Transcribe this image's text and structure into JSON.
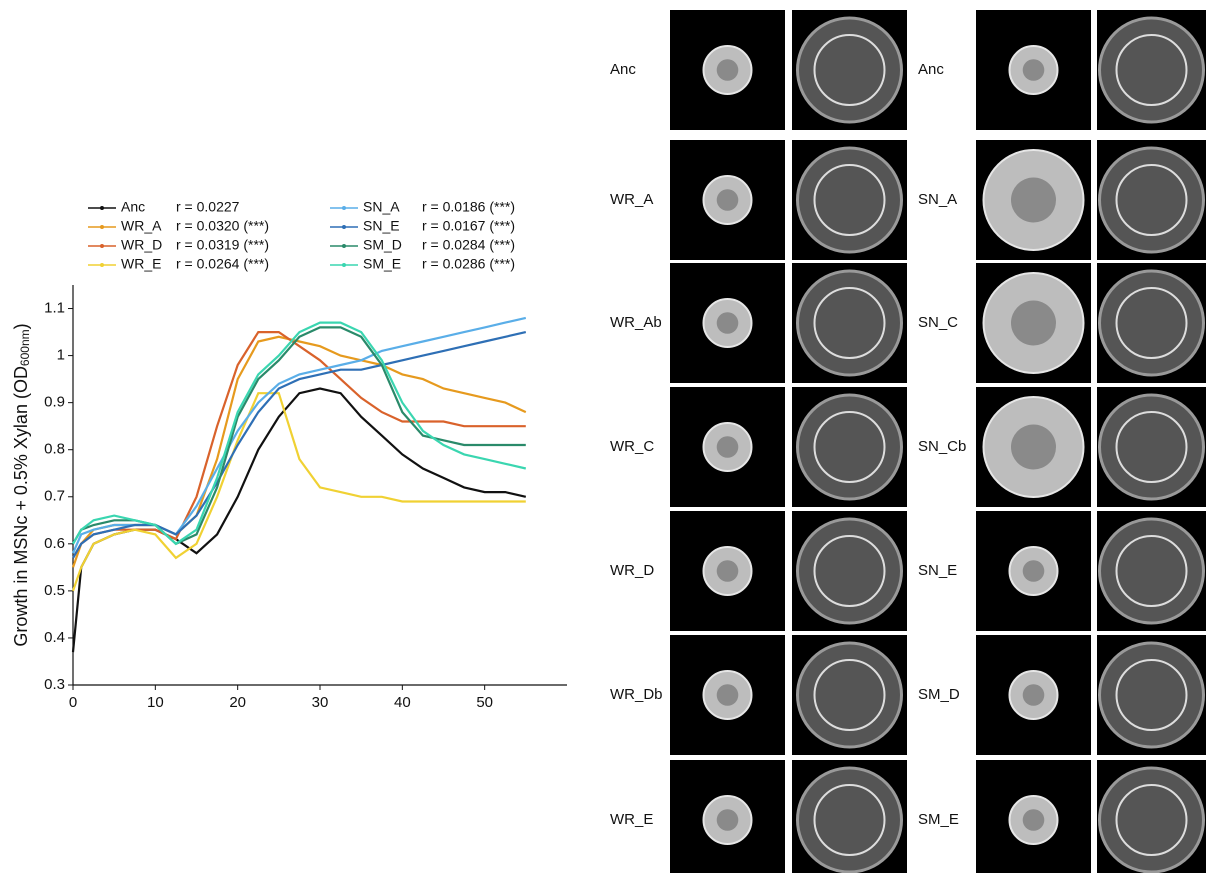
{
  "chart_data": {
    "type": "line",
    "ylabel": "Growth in MSNc + 0.5% Xylan (OD",
    "ylabel_sub": "600nm",
    "ylabel_end": ")",
    "x": [
      0,
      1,
      2.5,
      5,
      7.5,
      10,
      12.5,
      15,
      17.5,
      20,
      22.5,
      25,
      27.5,
      30,
      32.5,
      35,
      37.5,
      40,
      42.5,
      45,
      47.5,
      50,
      52.5,
      55
    ],
    "xlim": [
      0,
      60
    ],
    "xticks": [
      0,
      10,
      20,
      30,
      40,
      50
    ],
    "ylim": [
      0.3,
      1.15
    ],
    "yticks": [
      0.3,
      0.4,
      0.5,
      0.6,
      0.7,
      0.8,
      0.9,
      1.0,
      1.1
    ],
    "series": [
      {
        "name": "Anc",
        "stat": "r = 0.0227",
        "color": "#111111",
        "values": [
          0.37,
          0.55,
          0.6,
          0.62,
          0.63,
          0.63,
          0.61,
          0.58,
          0.62,
          0.7,
          0.8,
          0.87,
          0.92,
          0.93,
          0.92,
          0.87,
          0.83,
          0.79,
          0.76,
          0.74,
          0.72,
          0.71,
          0.71,
          0.7
        ]
      },
      {
        "name": "WR_A",
        "stat": "r = 0.0320  (***)",
        "color": "#e69a1e",
        "values": [
          0.55,
          0.6,
          0.63,
          0.64,
          0.64,
          0.64,
          0.62,
          0.66,
          0.78,
          0.95,
          1.03,
          1.04,
          1.03,
          1.02,
          1.0,
          0.99,
          0.98,
          0.96,
          0.95,
          0.93,
          0.92,
          0.91,
          0.9,
          0.88
        ]
      },
      {
        "name": "WR_D",
        "stat": "r = 0.0319 (***)",
        "color": "#d9622b",
        "values": [
          0.57,
          0.6,
          0.62,
          0.63,
          0.63,
          0.63,
          0.61,
          0.7,
          0.85,
          0.98,
          1.05,
          1.05,
          1.02,
          0.99,
          0.95,
          0.91,
          0.88,
          0.86,
          0.86,
          0.86,
          0.85,
          0.85,
          0.85,
          0.85
        ]
      },
      {
        "name": "WR_E",
        "stat": "r = 0.0264 (***)",
        "color": "#f0d133",
        "values": [
          0.5,
          0.55,
          0.6,
          0.62,
          0.63,
          0.62,
          0.57,
          0.6,
          0.7,
          0.82,
          0.92,
          0.92,
          0.78,
          0.72,
          0.71,
          0.7,
          0.7,
          0.69,
          0.69,
          0.69,
          0.69,
          0.69,
          0.69,
          0.69
        ]
      },
      {
        "name": "SN_A",
        "stat": "r = 0.0186 (***)",
        "color": "#5aaee8",
        "values": [
          0.58,
          0.62,
          0.63,
          0.64,
          0.64,
          0.64,
          0.62,
          0.68,
          0.76,
          0.84,
          0.9,
          0.94,
          0.96,
          0.97,
          0.98,
          0.99,
          1.01,
          1.02,
          1.03,
          1.04,
          1.05,
          1.06,
          1.07,
          1.08
        ]
      },
      {
        "name": "SN_E",
        "stat": "r = 0.0167 (***)",
        "color": "#2e6fb5",
        "values": [
          0.57,
          0.6,
          0.62,
          0.63,
          0.64,
          0.64,
          0.62,
          0.66,
          0.73,
          0.81,
          0.88,
          0.93,
          0.95,
          0.96,
          0.97,
          0.97,
          0.98,
          0.99,
          1.0,
          1.01,
          1.02,
          1.03,
          1.04,
          1.05
        ]
      },
      {
        "name": "SM_D",
        "stat": "r = 0.0284 (***)",
        "color": "#2a8a6a",
        "values": [
          0.6,
          0.63,
          0.64,
          0.65,
          0.65,
          0.64,
          0.6,
          0.62,
          0.72,
          0.87,
          0.95,
          0.99,
          1.04,
          1.06,
          1.06,
          1.04,
          0.98,
          0.88,
          0.83,
          0.82,
          0.81,
          0.81,
          0.81,
          0.81
        ]
      },
      {
        "name": "SM_E",
        "stat": "r = 0.0286 (***)",
        "color": "#3ad6b0",
        "values": [
          0.6,
          0.63,
          0.65,
          0.66,
          0.65,
          0.64,
          0.6,
          0.63,
          0.74,
          0.88,
          0.96,
          1.0,
          1.05,
          1.07,
          1.07,
          1.05,
          0.99,
          0.9,
          0.84,
          0.81,
          0.79,
          0.78,
          0.77,
          0.76
        ]
      }
    ]
  },
  "image_grid": {
    "left": [
      "Anc",
      "WR_A",
      "WR_Ab",
      "WR_C",
      "WR_D",
      "WR_Db",
      "WR_E"
    ],
    "right": [
      "Anc",
      "SN_A",
      "SN_C",
      "SN_Cb",
      "SN_E",
      "SM_D",
      "SM_E"
    ]
  }
}
